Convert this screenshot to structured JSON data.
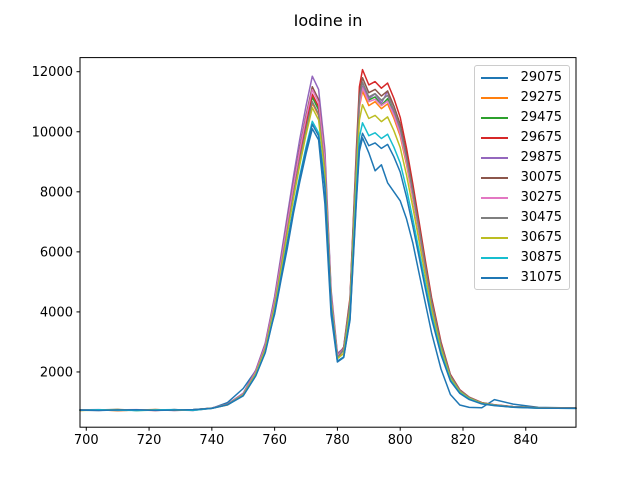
{
  "title": "Iodine in",
  "chart_data": {
    "type": "line",
    "title": "Iodine in",
    "xlabel": "",
    "ylabel": "",
    "xlim": [
      698,
      856
    ],
    "ylim": [
      160,
      12470
    ],
    "x_ticks": [
      700,
      720,
      740,
      760,
      780,
      800,
      820,
      840
    ],
    "y_ticks": [
      2000,
      4000,
      6000,
      8000,
      10000,
      12000
    ],
    "grid": false,
    "legend_position": "upper right",
    "line_width": 1.5,
    "axis_color": "#000000",
    "x": [
      698,
      704,
      710,
      716,
      722,
      728,
      734,
      740,
      745,
      750,
      754,
      757,
      760,
      762,
      764,
      766,
      768,
      770,
      772,
      774,
      776,
      778,
      780,
      782,
      784,
      786,
      787,
      788,
      790,
      792,
      794,
      796,
      798,
      800,
      802,
      804,
      806,
      808,
      810,
      813,
      816,
      819,
      822,
      826,
      830,
      836,
      844,
      856
    ],
    "series": [
      {
        "name": "29075",
        "color": "#1f77b4",
        "values": [
          740,
          725,
          735,
          720,
          745,
          730,
          740,
          790,
          980,
          1450,
          2050,
          2800,
          3920,
          5040,
          6100,
          7290,
          8320,
          9260,
          10100,
          9730,
          7600,
          3900,
          2330,
          2480,
          3720,
          7620,
          9350,
          9800,
          9300,
          8700,
          8900,
          8300,
          8000,
          7700,
          7100,
          6300,
          5300,
          4300,
          3300,
          2100,
          1250,
          900,
          820,
          810,
          1080,
          930,
          820,
          800
        ]
      },
      {
        "name": "29275",
        "color": "#ff7f0e",
        "values": [
          720,
          740,
          710,
          730,
          750,
          720,
          735,
          790,
          900,
          1240,
          1960,
          2770,
          4200,
          5430,
          6660,
          7880,
          9010,
          10030,
          10950,
          10540,
          8700,
          4410,
          2470,
          2620,
          4100,
          8800,
          10820,
          11350,
          10870,
          11000,
          10770,
          10930,
          10450,
          9860,
          8910,
          7790,
          6620,
          5400,
          4240,
          2850,
          1850,
          1370,
          1130,
          960,
          900,
          840,
          800,
          795
        ]
      },
      {
        "name": "29475",
        "color": "#2ca02c",
        "values": [
          725,
          735,
          745,
          715,
          730,
          740,
          720,
          795,
          920,
          1250,
          1980,
          2810,
          4270,
          5520,
          6770,
          8020,
          9170,
          10210,
          11150,
          10730,
          8860,
          4480,
          2500,
          2720,
          4280,
          8920,
          10960,
          11500,
          11060,
          11160,
          10880,
          11100,
          10560,
          9970,
          9040,
          7860,
          6690,
          5450,
          4260,
          2870,
          1860,
          1380,
          1140,
          970,
          900,
          840,
          805,
          795
        ]
      },
      {
        "name": "29675",
        "color": "#d62728",
        "values": [
          730,
          720,
          740,
          735,
          715,
          745,
          725,
          795,
          925,
          1260,
          1990,
          2835,
          4310,
          5570,
          6830,
          8090,
          9250,
          10300,
          11250,
          10830,
          8940,
          4520,
          2520,
          2830,
          4470,
          9350,
          11500,
          12070,
          11560,
          11670,
          11450,
          11620,
          11110,
          10480,
          9460,
          8270,
          7020,
          5720,
          4470,
          3000,
          1920,
          1410,
          1160,
          980,
          910,
          845,
          810,
          800
        ]
      },
      {
        "name": "29875",
        "color": "#9467bd",
        "values": [
          735,
          745,
          720,
          730,
          740,
          715,
          735,
          800,
          930,
          1290,
          2065,
          2955,
          4510,
          5850,
          7180,
          8510,
          9740,
          10850,
          11850,
          11410,
          9400,
          4730,
          2620,
          2790,
          4350,
          9020,
          11060,
          11520,
          11100,
          11260,
          10950,
          11350,
          10620,
          10030,
          9060,
          7920,
          6740,
          5500,
          4300,
          2890,
          1870,
          1380,
          1140,
          960,
          890,
          835,
          800,
          790
        ]
      },
      {
        "name": "30075",
        "color": "#8c564b",
        "values": [
          720,
          735,
          750,
          725,
          740,
          730,
          745,
          790,
          925,
          1270,
          2020,
          2880,
          4390,
          5680,
          6980,
          8270,
          9450,
          10530,
          11500,
          11070,
          9130,
          4610,
          2560,
          2780,
          4380,
          9140,
          11250,
          11800,
          11300,
          11410,
          11190,
          11360,
          10860,
          10250,
          9250,
          8090,
          6870,
          5600,
          4380,
          2940,
          1890,
          1390,
          1150,
          970,
          900,
          840,
          805,
          795
        ]
      },
      {
        "name": "30275",
        "color": "#e377c2",
        "values": [
          730,
          725,
          740,
          745,
          720,
          735,
          715,
          790,
          920,
          1265,
          2010,
          2865,
          4360,
          5640,
          6920,
          8200,
          9370,
          10440,
          11400,
          10970,
          9050,
          4570,
          2545,
          2760,
          4240,
          8850,
          10880,
          11460,
          11000,
          11080,
          10870,
          11020,
          10540,
          9940,
          8990,
          7840,
          6660,
          5430,
          4250,
          2860,
          1850,
          1375,
          1135,
          960,
          895,
          835,
          800,
          790
        ]
      },
      {
        "name": "30475",
        "color": "#7f7f7f",
        "values": [
          740,
          730,
          720,
          735,
          725,
          745,
          730,
          790,
          915,
          1245,
          1960,
          2785,
          4220,
          5455,
          6685,
          7920,
          9050,
          10075,
          11000,
          10590,
          8740,
          4430,
          2475,
          2750,
          4335,
          9030,
          11105,
          11650,
          11160,
          11270,
          11050,
          11215,
          10720,
          10120,
          9140,
          7990,
          6790,
          5535,
          4335,
          2915,
          1875,
          1385,
          1145,
          970,
          900,
          840,
          805,
          795
        ]
      },
      {
        "name": "30675",
        "color": "#bcbd22",
        "values": [
          715,
          730,
          745,
          720,
          740,
          725,
          735,
          790,
          910,
          1235,
          1940,
          2745,
          4155,
          5365,
          6570,
          7780,
          8885,
          9895,
          10800,
          10395,
          8585,
          4355,
          2440,
          2610,
          4085,
          8460,
          10390,
          10900,
          10440,
          10545,
          10340,
          10495,
          10035,
          9475,
          8560,
          7495,
          6375,
          5205,
          4085,
          2765,
          1800,
          1340,
          1115,
          955,
          890,
          830,
          800,
          790
        ]
      },
      {
        "name": "30875",
        "color": "#17becf",
        "values": [
          725,
          740,
          730,
          715,
          735,
          745,
          720,
          785,
          905,
          1210,
          1885,
          2655,
          4000,
          5155,
          6310,
          7465,
          8520,
          9485,
          10350,
          9965,
          8235,
          4195,
          2365,
          2500,
          3890,
          8005,
          9820,
          10300,
          9870,
          9965,
          9775,
          9920,
          9485,
          8960,
          8100,
          7095,
          6040,
          4940,
          3890,
          2645,
          1735,
          1305,
          1095,
          940,
          885,
          825,
          795,
          785
        ]
      },
      {
        "name": "31075",
        "color": "#1f77b4",
        "values": [
          730,
          715,
          735,
          740,
          720,
          730,
          745,
          785,
          905,
          1205,
          1870,
          2635,
          3965,
          5110,
          6250,
          7395,
          8440,
          9395,
          10250,
          9870,
          8155,
          4155,
          2350,
          2490,
          3775,
          7735,
          9490,
          9950,
          9535,
          9630,
          9445,
          9580,
          9165,
          8660,
          7830,
          6860,
          5845,
          4785,
          3775,
          2575,
          1700,
          1285,
          1080,
          935,
          880,
          825,
          795,
          785
        ]
      }
    ]
  }
}
